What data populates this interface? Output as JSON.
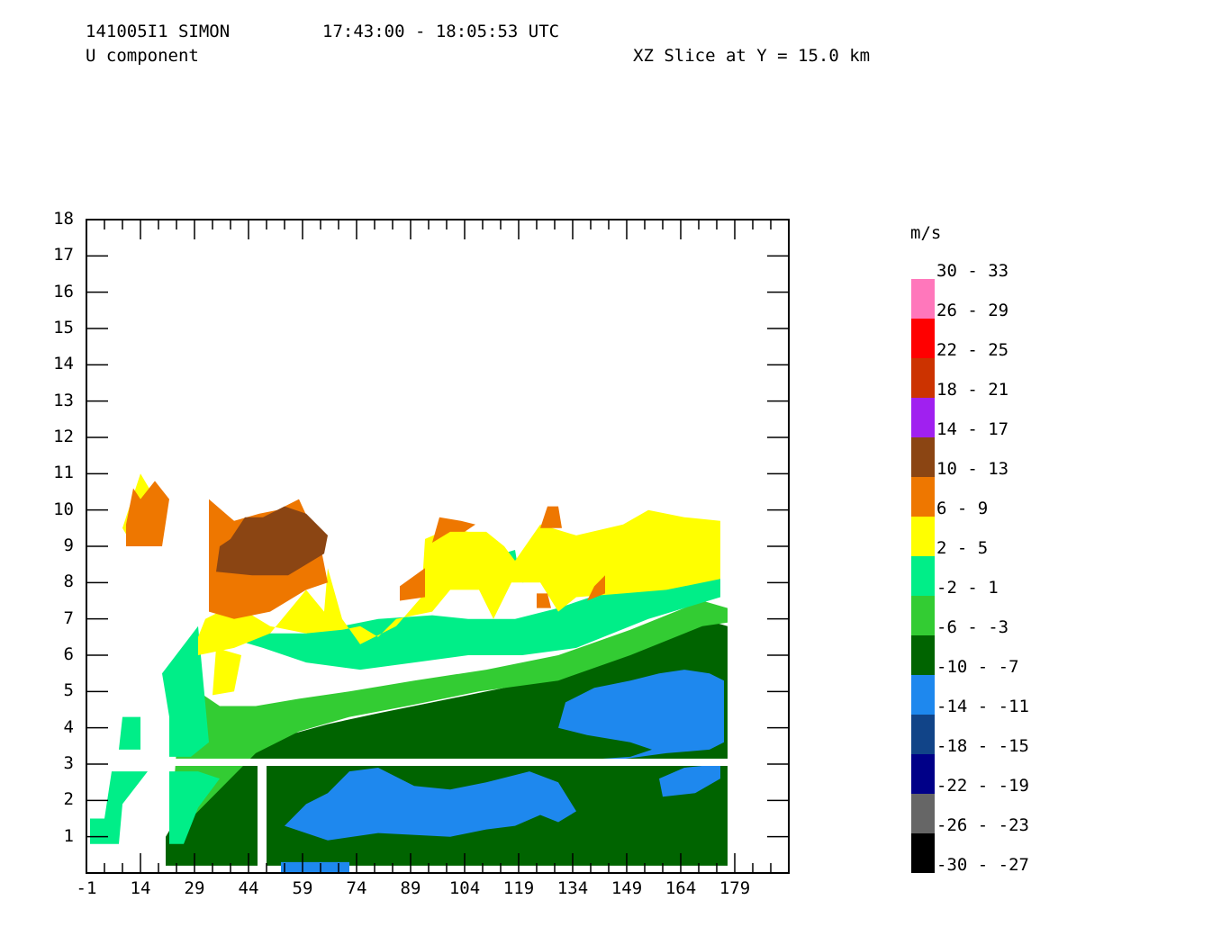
{
  "header": {
    "line1_id": "141005I1 SIMON",
    "line1_time": "17:43:00 - 18:05:53 UTC",
    "line2_field": "U component",
    "line2_slice": "XZ Slice at Y = 15.0 km"
  },
  "chart_data": {
    "type": "heatmap",
    "title": "U component",
    "subtitle": "XZ Slice at Y = 15.0 km",
    "xlabel": "",
    "ylabel": "",
    "x_ticks": [
      "-1",
      "14",
      "29",
      "44",
      "59",
      "74",
      "89",
      "104",
      "119",
      "134",
      "149",
      "164",
      "179"
    ],
    "y_ticks": [
      "1",
      "2",
      "3",
      "4",
      "5",
      "6",
      "7",
      "8",
      "9",
      "10",
      "11",
      "12",
      "13",
      "14",
      "15",
      "16",
      "17",
      "18"
    ],
    "xlim": [
      -1,
      194
    ],
    "ylim": [
      0,
      18
    ],
    "legend_title": "m/s",
    "legend": [
      {
        "label": "30 - 33",
        "color": "#ff77bb"
      },
      {
        "label": "26 - 29",
        "color": "#ff0000"
      },
      {
        "label": "22 - 25",
        "color": "#cc3300"
      },
      {
        "label": "18 - 21",
        "color": "#a020f0"
      },
      {
        "label": "14 - 17",
        "color": "#8b4513"
      },
      {
        "label": "10 - 13",
        "color": "#ee7700"
      },
      {
        "label": "6 - 9",
        "color": "#ffff00"
      },
      {
        "label": "2 - 5",
        "color": "#00ee88"
      },
      {
        "label": "-2 - 1",
        "color": "#33cc33"
      },
      {
        "label": "-6 - -3",
        "color": "#006400"
      },
      {
        "label": "-10 - -7",
        "color": "#1e88ee"
      },
      {
        "label": "-14 - -11",
        "color": "#114488"
      },
      {
        "label": "-18 - -15",
        "color": "#000088"
      },
      {
        "label": "-22 - -19",
        "color": "#666666"
      },
      {
        "label": "-26 - -23",
        "color": "#000000"
      },
      {
        "label": "-30 - -27",
        "color": "#000000"
      }
    ],
    "region_colors": {
      "orange": "#ee7700",
      "brown": "#8b4513",
      "yellow": "#ffff00",
      "aqua": "#00ee88",
      "lightgreen": "#33cc33",
      "darkgreen": "#006400",
      "blue": "#1e88ee"
    },
    "regions": [
      {
        "c": "darkgreen",
        "pts": [
          [
            21,
            0.2
          ],
          [
            177,
            0.2
          ],
          [
            177,
            6.8
          ],
          [
            170,
            7
          ],
          [
            150,
            6.1
          ],
          [
            130,
            5.4
          ],
          [
            110,
            5.0
          ],
          [
            95,
            4.7
          ],
          [
            80,
            4.4
          ],
          [
            66,
            4.1
          ],
          [
            55,
            3.8
          ],
          [
            44,
            3.4
          ],
          [
            38,
            2.7
          ],
          [
            32,
            2.2
          ],
          [
            24,
            1.5
          ],
          [
            21,
            1.0
          ]
        ]
      },
      {
        "c": "lightgreen",
        "pts": [
          [
            25,
            1.2
          ],
          [
            36,
            2.3
          ],
          [
            46,
            3.3
          ],
          [
            58,
            3.9
          ],
          [
            72,
            4.3
          ],
          [
            88,
            4.6
          ],
          [
            108,
            5.0
          ],
          [
            130,
            5.3
          ],
          [
            150,
            6.0
          ],
          [
            170,
            6.8
          ],
          [
            177,
            6.9
          ],
          [
            177,
            7.3
          ],
          [
            170,
            7.5
          ],
          [
            150,
            6.7
          ],
          [
            130,
            6.0
          ],
          [
            110,
            5.6
          ],
          [
            90,
            5.3
          ],
          [
            72,
            5.0
          ],
          [
            58,
            4.8
          ],
          [
            46,
            4.6
          ],
          [
            36,
            4.6
          ],
          [
            30,
            5.0
          ],
          [
            29,
            4.5
          ],
          [
            24,
            3.4
          ],
          [
            23,
            2.0
          ]
        ]
      },
      {
        "c": "aqua",
        "pts": [
          [
            8,
            3.4
          ],
          [
            14,
            3.4
          ],
          [
            14,
            4.3
          ],
          [
            9,
            4.3
          ]
        ]
      },
      {
        "c": "aqua",
        "pts": [
          [
            0,
            0.8
          ],
          [
            8,
            0.8
          ],
          [
            9,
            1.9
          ],
          [
            16,
            2.8
          ],
          [
            6,
            2.8
          ],
          [
            4,
            1.5
          ],
          [
            0,
            1.5
          ]
        ]
      },
      {
        "c": "aqua",
        "pts": [
          [
            22,
            0.8
          ],
          [
            26,
            0.8
          ],
          [
            30,
            1.8
          ],
          [
            36,
            2.6
          ],
          [
            30,
            2.8
          ],
          [
            22,
            2.8
          ]
        ]
      },
      {
        "c": "aqua",
        "pts": [
          [
            22,
            3.2
          ],
          [
            28,
            3.2
          ],
          [
            33,
            3.6
          ],
          [
            30,
            6.8
          ],
          [
            20,
            5.5
          ],
          [
            22,
            4.3
          ]
        ]
      },
      {
        "c": "aqua",
        "pts": [
          [
            31,
            6.7
          ],
          [
            48,
            6.2
          ],
          [
            60,
            5.8
          ],
          [
            75,
            5.6
          ],
          [
            90,
            5.8
          ],
          [
            105,
            6.0
          ],
          [
            120,
            6.0
          ],
          [
            135,
            6.2
          ],
          [
            155,
            7.0
          ],
          [
            175,
            7.6
          ],
          [
            175,
            8.2
          ],
          [
            160,
            8.0
          ],
          [
            145,
            7.8
          ],
          [
            130,
            7.3
          ],
          [
            118,
            7.0
          ],
          [
            105,
            7.0
          ],
          [
            95,
            7.1
          ],
          [
            80,
            7.0
          ],
          [
            60,
            6.6
          ],
          [
            50,
            6.6
          ],
          [
            40,
            6.8
          ]
        ]
      },
      {
        "c": "aqua",
        "pts": [
          [
            119,
            8.5
          ],
          [
            135,
            9.0
          ],
          [
            148,
            9.3
          ],
          [
            150,
            8.5
          ],
          [
            135,
            8.2
          ],
          [
            120,
            8.0
          ]
        ]
      },
      {
        "c": "aqua",
        "pts": [
          [
            108,
            7.9
          ],
          [
            119,
            8.3
          ],
          [
            118,
            8.9
          ],
          [
            108,
            8.6
          ]
        ]
      },
      {
        "c": "yellow",
        "pts": [
          [
            9,
            9.5
          ],
          [
            14,
            11.0
          ],
          [
            17,
            10.5
          ],
          [
            20,
            10.0
          ],
          [
            20,
            9.0
          ],
          [
            12,
            9.0
          ]
        ]
      },
      {
        "c": "yellow",
        "pts": [
          [
            30,
            6.0
          ],
          [
            40,
            6.2
          ],
          [
            50,
            6.6
          ],
          [
            55,
            7.2
          ],
          [
            60,
            7.8
          ],
          [
            65,
            7.2
          ],
          [
            66,
            8.4
          ],
          [
            70,
            7.0
          ],
          [
            75,
            6.3
          ],
          [
            85,
            6.8
          ],
          [
            92,
            7.6
          ],
          [
            93,
            9.2
          ],
          [
            100,
            9.5
          ],
          [
            105,
            9.4
          ],
          [
            110,
            9.4
          ],
          [
            115,
            9.0
          ],
          [
            118,
            8.6
          ],
          [
            125,
            9.6
          ],
          [
            135,
            9.3
          ],
          [
            148,
            9.6
          ],
          [
            155,
            10.0
          ],
          [
            165,
            9.8
          ],
          [
            175,
            9.7
          ],
          [
            175,
            8.1
          ],
          [
            160,
            7.8
          ],
          [
            148,
            7.7
          ],
          [
            135,
            7.6
          ],
          [
            130,
            7.2
          ],
          [
            125,
            8.0
          ],
          [
            117,
            8.0
          ],
          [
            112,
            7.0
          ],
          [
            108,
            7.8
          ],
          [
            100,
            7.8
          ],
          [
            95,
            7.2
          ],
          [
            85,
            7.0
          ],
          [
            80,
            6.5
          ],
          [
            75,
            6.8
          ],
          [
            70,
            6.7
          ],
          [
            60,
            6.6
          ],
          [
            50,
            6.8
          ],
          [
            40,
            7.4
          ],
          [
            32,
            7.0
          ],
          [
            30,
            6.5
          ]
        ]
      },
      {
        "c": "yellow",
        "pts": [
          [
            34,
            4.9
          ],
          [
            40,
            5.0
          ],
          [
            42,
            6.0
          ],
          [
            35,
            6.2
          ]
        ]
      },
      {
        "c": "orange",
        "pts": [
          [
            10,
            9.0
          ],
          [
            20,
            9.0
          ],
          [
            22,
            10.3
          ],
          [
            18,
            10.8
          ],
          [
            14,
            10.3
          ],
          [
            12,
            10.6
          ],
          [
            10,
            9.6
          ]
        ]
      },
      {
        "c": "orange",
        "pts": [
          [
            33,
            7.2
          ],
          [
            40,
            7.0
          ],
          [
            50,
            7.2
          ],
          [
            60,
            7.8
          ],
          [
            66,
            8.0
          ],
          [
            64,
            9.0
          ],
          [
            58,
            10.3
          ],
          [
            52,
            10.0
          ],
          [
            47,
            9.9
          ],
          [
            40,
            9.7
          ],
          [
            33,
            10.3
          ],
          [
            33,
            9.6
          ]
        ]
      },
      {
        "c": "brown",
        "pts": [
          [
            35,
            8.3
          ],
          [
            45,
            8.2
          ],
          [
            55,
            8.2
          ],
          [
            65,
            8.8
          ],
          [
            66,
            9.3
          ],
          [
            60,
            9.9
          ],
          [
            54,
            10.1
          ],
          [
            48,
            9.8
          ],
          [
            43,
            9.8
          ],
          [
            39,
            9.2
          ],
          [
            36,
            9.0
          ]
        ]
      },
      {
        "c": "orange",
        "pts": [
          [
            86,
            7.5
          ],
          [
            93,
            7.6
          ],
          [
            93,
            8.4
          ],
          [
            86,
            7.9
          ]
        ]
      },
      {
        "c": "orange",
        "pts": [
          [
            95,
            9.1
          ],
          [
            100,
            9.4
          ],
          [
            104,
            9.4
          ],
          [
            107,
            9.6
          ],
          [
            103,
            9.7
          ],
          [
            97,
            9.8
          ]
        ]
      },
      {
        "c": "orange",
        "pts": [
          [
            125,
            9.5
          ],
          [
            131,
            9.5
          ],
          [
            130,
            10.1
          ],
          [
            127,
            10.1
          ]
        ]
      },
      {
        "c": "orange",
        "pts": [
          [
            138,
            7.5
          ],
          [
            143,
            7.7
          ],
          [
            143,
            8.2
          ],
          [
            140,
            7.9
          ]
        ]
      },
      {
        "c": "orange",
        "pts": [
          [
            124,
            7.3
          ],
          [
            128,
            7.3
          ],
          [
            127,
            7.7
          ],
          [
            124,
            7.7
          ]
        ]
      },
      {
        "c": "blue",
        "pts": [
          [
            66,
            0.9
          ],
          [
            80,
            1.1
          ],
          [
            100,
            1.0
          ],
          [
            110,
            1.2
          ],
          [
            118,
            1.3
          ],
          [
            125,
            1.6
          ],
          [
            130,
            1.4
          ],
          [
            135,
            1.7
          ],
          [
            130,
            2.5
          ],
          [
            122,
            2.8
          ],
          [
            110,
            2.5
          ],
          [
            100,
            2.3
          ],
          [
            90,
            2.4
          ],
          [
            80,
            2.9
          ],
          [
            72,
            2.8
          ],
          [
            66,
            2.2
          ],
          [
            60,
            1.9
          ],
          [
            54,
            1.3
          ]
        ]
      },
      {
        "c": "blue",
        "pts": [
          [
            125,
            3.0
          ],
          [
            145,
            3.1
          ],
          [
            160,
            3.3
          ],
          [
            172,
            3.4
          ],
          [
            176,
            3.6
          ],
          [
            176,
            5.3
          ],
          [
            172,
            5.5
          ],
          [
            165,
            5.6
          ],
          [
            158,
            5.5
          ],
          [
            150,
            5.3
          ],
          [
            140,
            5.1
          ],
          [
            132,
            4.7
          ],
          [
            130,
            4.0
          ],
          [
            138,
            3.8
          ],
          [
            150,
            3.6
          ],
          [
            156,
            3.4
          ],
          [
            150,
            3.2
          ],
          [
            135,
            3.1
          ]
        ]
      },
      {
        "c": "blue",
        "pts": [
          [
            159,
            2.1
          ],
          [
            168,
            2.2
          ],
          [
            175,
            2.6
          ],
          [
            175,
            3.0
          ],
          [
            165,
            2.9
          ],
          [
            158,
            2.6
          ]
        ]
      },
      {
        "c": "blue",
        "pts": [
          [
            53,
            0.0
          ],
          [
            72,
            0.0
          ],
          [
            72,
            0.3
          ],
          [
            53,
            0.3
          ]
        ]
      }
    ],
    "gaps": [
      {
        "x0": 6,
        "x1": 177,
        "y0": 2.95,
        "y1": 3.15
      },
      {
        "x0": 16,
        "x1": 21,
        "y0": 0,
        "y1": 4.5
      },
      {
        "x0": 46.5,
        "x1": 49,
        "y0": 0,
        "y1": 3.0
      }
    ]
  }
}
